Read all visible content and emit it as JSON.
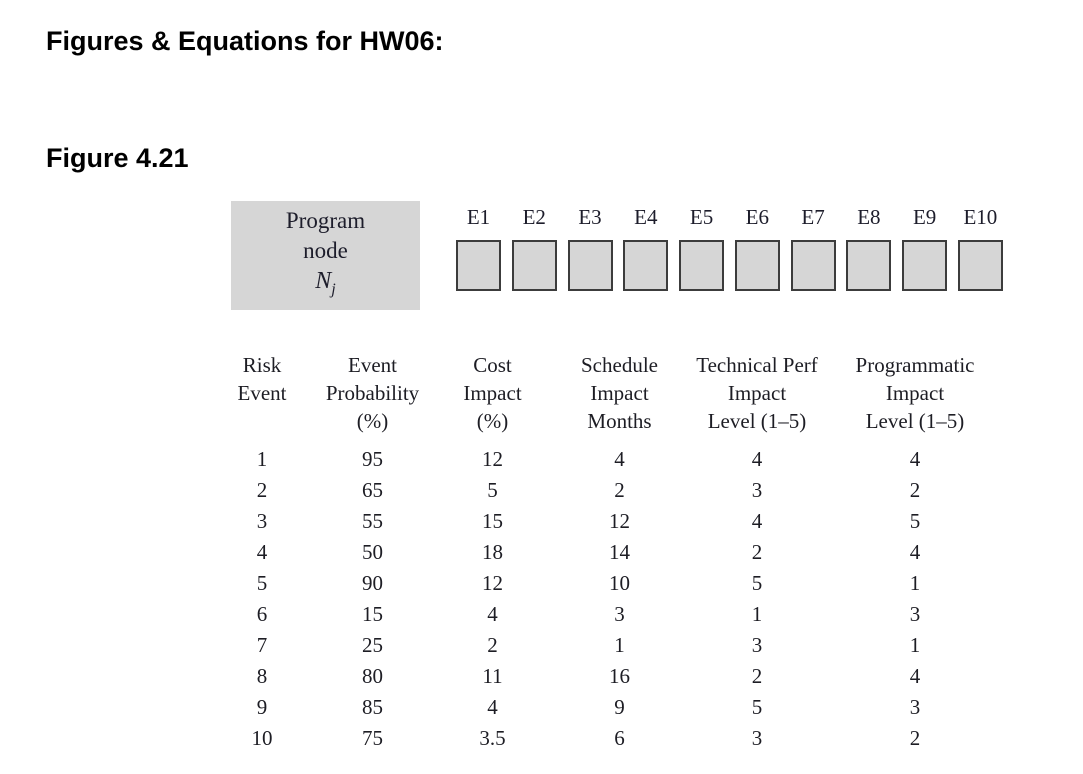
{
  "page": {
    "title": "Figures & Equations for HW06:",
    "figure_label": "Figure 4.21"
  },
  "diagram": {
    "program_node": {
      "line1": "Program",
      "line2": "node",
      "symbol": "N",
      "symbol_sub": "j"
    },
    "event_labels": [
      "E1",
      "E2",
      "E3",
      "E4",
      "E5",
      "E6",
      "E7",
      "E8",
      "E9",
      "E10"
    ],
    "box_fill": "#d6d6d6",
    "box_border": "#3c3c3c"
  },
  "table": {
    "headers": [
      {
        "lines": [
          "Risk",
          "Event"
        ]
      },
      {
        "lines": [
          "Event",
          "Probability",
          "(%)"
        ]
      },
      {
        "lines": [
          "Cost",
          "Impact",
          "(%)"
        ]
      },
      {
        "lines": [
          "Schedule",
          "Impact",
          "Months"
        ]
      },
      {
        "lines": [
          "Technical Perf",
          "Impact",
          "Level (1–5)"
        ]
      },
      {
        "lines": [
          "Programmatic",
          "Impact",
          "Level (1–5)"
        ]
      }
    ],
    "rows": [
      [
        "1",
        "95",
        "12",
        "4",
        "4",
        "4"
      ],
      [
        "2",
        "65",
        "5",
        "2",
        "3",
        "2"
      ],
      [
        "3",
        "55",
        "15",
        "12",
        "4",
        "5"
      ],
      [
        "4",
        "50",
        "18",
        "14",
        "2",
        "4"
      ],
      [
        "5",
        "90",
        "12",
        "10",
        "5",
        "1"
      ],
      [
        "6",
        "15",
        "4",
        "3",
        "1",
        "3"
      ],
      [
        "7",
        "25",
        "2",
        "1",
        "3",
        "1"
      ],
      [
        "8",
        "80",
        "11",
        "16",
        "2",
        "4"
      ],
      [
        "9",
        "85",
        "4",
        "9",
        "5",
        "3"
      ],
      [
        "10",
        "75",
        "3.5",
        "6",
        "3",
        "2"
      ]
    ]
  }
}
